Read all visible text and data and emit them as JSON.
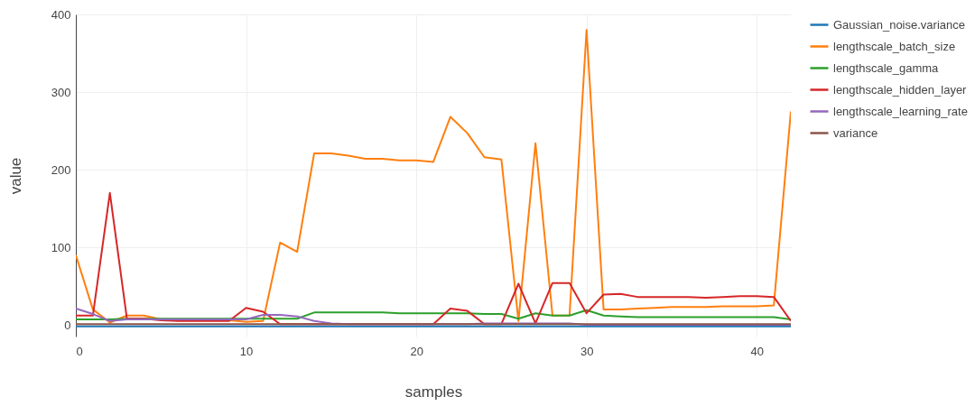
{
  "chart_data": {
    "type": "line",
    "xlabel": "samples",
    "ylabel": "value",
    "x": [
      0,
      1,
      2,
      3,
      4,
      5,
      6,
      7,
      8,
      9,
      10,
      11,
      12,
      13,
      14,
      15,
      16,
      17,
      18,
      19,
      20,
      21,
      22,
      23,
      24,
      25,
      26,
      27,
      28,
      29,
      30,
      31,
      32,
      33,
      34,
      35,
      36,
      37,
      38,
      39,
      40,
      41,
      42
    ],
    "xlim": [
      0,
      42
    ],
    "xticks": [
      0,
      10,
      20,
      30,
      40
    ],
    "ylim": [
      -15,
      400
    ],
    "yticks": [
      0,
      100,
      200,
      300,
      400
    ],
    "grid": true,
    "legend": "top right",
    "series": [
      {
        "name": "Gaussian_noise.variance",
        "color": "#1f77b4",
        "values": [
          -2,
          -2,
          -2,
          -2,
          -2,
          -2,
          -2,
          -2,
          -2,
          -2,
          -2,
          -2,
          -2,
          -2,
          -2,
          -2,
          -2,
          -2,
          -2,
          -2,
          -2,
          -2,
          -2,
          -2,
          -2,
          -2,
          -2,
          -2,
          -2,
          -2,
          -2,
          -2,
          -2,
          -2,
          -2,
          -2,
          -2,
          -2,
          -2,
          -2,
          -2,
          -2,
          -2
        ]
      },
      {
        "name": "lengthscale_batch_size",
        "color": "#ff7f0e",
        "values": [
          90,
          20,
          3,
          12,
          12,
          7,
          6,
          6,
          6,
          6,
          4,
          5,
          106,
          94,
          221,
          221,
          218,
          214,
          214,
          212,
          212,
          210,
          268,
          247,
          216,
          213,
          5,
          234,
          12,
          12,
          380,
          20,
          20,
          21,
          22,
          23,
          23,
          23,
          24,
          24,
          24,
          25,
          275
        ]
      },
      {
        "name": "lengthscale_gamma",
        "color": "#2ca02c",
        "values": [
          7,
          7,
          7,
          8,
          8,
          8,
          8,
          8,
          8,
          8,
          8,
          8,
          8,
          8,
          16,
          16,
          16,
          16,
          16,
          15,
          15,
          15,
          15,
          15,
          14,
          14,
          8,
          15,
          12,
          12,
          19,
          12,
          11,
          10,
          10,
          10,
          10,
          10,
          10,
          10,
          10,
          10,
          7
        ]
      },
      {
        "name": "lengthscale_hidden_layer",
        "color": "#d62728",
        "values": [
          12,
          12,
          170,
          8,
          8,
          6,
          5,
          5,
          5,
          5,
          22,
          17,
          1,
          1,
          1,
          1,
          1,
          1,
          1,
          1,
          1,
          1,
          21,
          18,
          1,
          1,
          53,
          2,
          54,
          54,
          15,
          39,
          40,
          36,
          36,
          36,
          36,
          35,
          36,
          37,
          37,
          36,
          5
        ]
      },
      {
        "name": "lengthscale_learning_rate",
        "color": "#9467bd",
        "values": [
          21,
          14,
          5,
          7,
          7,
          7,
          7,
          7,
          7,
          7,
          7,
          13,
          13,
          11,
          5,
          2,
          1,
          1,
          1,
          1,
          1,
          1,
          1,
          1,
          2,
          2,
          2,
          2,
          2,
          2,
          0,
          0,
          0,
          0,
          0,
          0,
          0,
          0,
          0,
          0,
          0,
          0,
          0
        ]
      },
      {
        "name": "variance",
        "color": "#8c564b",
        "values": [
          1,
          1,
          1,
          1,
          1,
          1,
          1,
          1,
          1,
          1,
          1,
          1,
          1,
          1,
          1,
          1,
          1,
          1,
          1,
          1,
          1,
          1,
          1,
          1,
          1,
          1,
          1,
          1,
          1,
          1,
          1,
          1,
          1,
          1,
          1,
          1,
          1,
          1,
          1,
          1,
          1,
          1,
          1
        ]
      }
    ]
  }
}
